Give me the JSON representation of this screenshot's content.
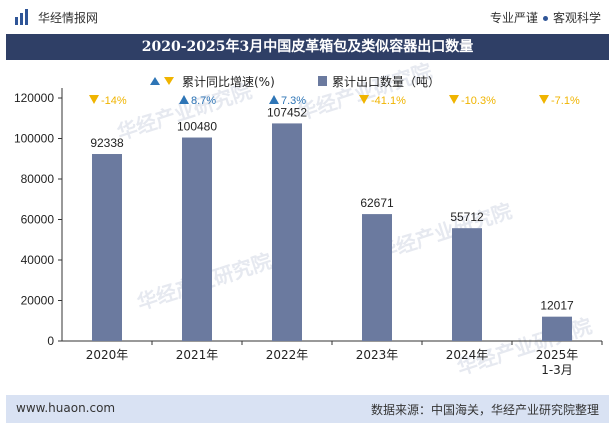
{
  "header": {
    "brand": "华经情报网",
    "tagline_left": "专业严谨",
    "tagline_right": "客观科学"
  },
  "title": "2020-2025年3月中国皮革箱包及类似容器出口数量",
  "legend": {
    "growth_label": "累计同比增速(%)",
    "volume_label": "累计出口数量（吨）"
  },
  "footer": {
    "site": "www.huaon.com",
    "source": "数据来源：中国海关，华经产业研究院整理"
  },
  "watermark": "华经产业研究院",
  "colors": {
    "bar": "#6b7a9f",
    "up": "#2e75b6",
    "down": "#f0b400",
    "title_bg": "#2f3f66",
    "footer_bg": "#d9e2f3"
  },
  "chart_data": {
    "type": "bar",
    "categories": [
      "2020年",
      "2021年",
      "2022年",
      "2023年",
      "2024年",
      "2025年\n1-3月"
    ],
    "series": [
      {
        "name": "累计出口数量（吨）",
        "values": [
          92338,
          100480,
          107452,
          62671,
          55712,
          12017
        ]
      },
      {
        "name": "累计同比增速(%)",
        "values": [
          -14,
          8.7,
          7.3,
          -41.1,
          -10.3,
          -7.1
        ]
      }
    ],
    "value_labels": [
      "92338",
      "100480",
      "107452",
      "62671",
      "55712",
      "12017"
    ],
    "growth_labels": [
      "-14%",
      "8.7%",
      "7.3%",
      "-41.1%",
      "-10.3%",
      "-7.1%"
    ],
    "y_ticks": [
      "0",
      "20000",
      "40000",
      "60000",
      "80000",
      "100000",
      "120000"
    ],
    "ylim": [
      0,
      120000
    ],
    "legend_position": "top-center",
    "grid": false
  }
}
